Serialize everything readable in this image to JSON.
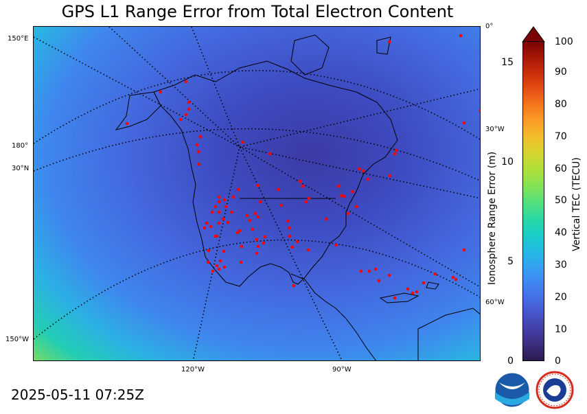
{
  "title": "GPS L1 Range Error from Total Electron Content",
  "timestamp": "2025-05-11 07:25Z",
  "map": {
    "left_edge_labels": [
      "150°E",
      "180°",
      "30°N",
      "150°W"
    ],
    "right_edge_labels": [
      "0°",
      "30°W",
      "60°W"
    ],
    "bottom_labels": [
      "120°W",
      "90°W"
    ],
    "station_marker_color": "#ff0000",
    "graticule_style": "dotted"
  },
  "colorbar": {
    "left_axis_label": "Ionosphere Range Error (m)",
    "left_ticks": [
      "0",
      "5",
      "10",
      "15"
    ],
    "right_axis_label": "Vertical TEC (TECU)",
    "right_ticks": [
      "0",
      "10",
      "20",
      "30",
      "40",
      "50",
      "60",
      "70",
      "80",
      "90",
      "100"
    ],
    "colors": [
      "#2b1a4e",
      "#3c2d7e",
      "#4340a8",
      "#4656cc",
      "#4570e6",
      "#3f8af2",
      "#33a4f0",
      "#21bde0",
      "#18cfc4",
      "#2fd99f",
      "#58e07a",
      "#86e254",
      "#b0df3a",
      "#d6d42f",
      "#f1bf2c",
      "#fb9e26",
      "#f6781c",
      "#e55013",
      "#cc300c",
      "#a81807",
      "#7a0403"
    ]
  },
  "logos": [
    "noaa-logo",
    "national-weather-service-logo"
  ]
}
